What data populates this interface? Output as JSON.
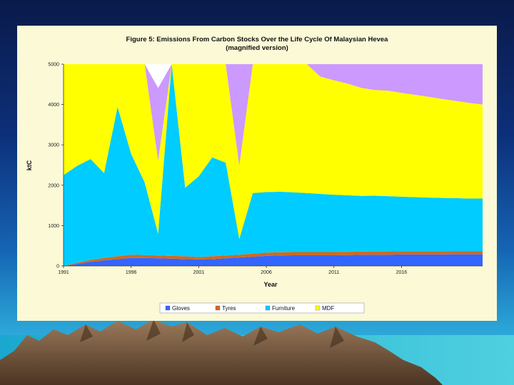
{
  "chart_data": {
    "type": "area",
    "stacked": true,
    "title": "Figure 5: Emissions From Carbon Stocks Over the Life Cycle Of Malaysian Hevea",
    "subtitle": "(magnified version)",
    "xlabel": "Year",
    "ylabel": "ktC",
    "ylim": [
      0,
      5000
    ],
    "xlim": [
      1991,
      2022
    ],
    "x_tick_values": [
      1991,
      1996,
      2001,
      2006,
      2011,
      2016
    ],
    "x_tick_labels": [
      "1991",
      "1996",
      "2001",
      "2006",
      "2011",
      "2016"
    ],
    "y_ticks": [
      0,
      1000,
      2000,
      3000,
      4000,
      5000
    ],
    "grid": false,
    "legend_position": "bottom",
    "x": [
      1991,
      1992,
      1993,
      1994,
      1995,
      1996,
      1997,
      1998,
      1999,
      2000,
      2001,
      2002,
      2003,
      2004,
      2005,
      2006,
      2007,
      2008,
      2009,
      2010,
      2011,
      2012,
      2013,
      2014,
      2015,
      2016,
      2017,
      2018,
      2019,
      2020,
      2021,
      2022
    ],
    "series": [
      {
        "name": "Gloves",
        "color": "#3366ff",
        "values": [
          0,
          50,
          100,
          140,
          170,
          200,
          200,
          190,
          180,
          170,
          160,
          170,
          190,
          210,
          230,
          250,
          260,
          265,
          265,
          265,
          265,
          270,
          275,
          280,
          280,
          285,
          285,
          285,
          285,
          290,
          290,
          290
        ]
      },
      {
        "name": "Tyres",
        "color": "#d2691e",
        "values": [
          0,
          30,
          50,
          60,
          70,
          80,
          70,
          70,
          70,
          70,
          60,
          70,
          70,
          70,
          75,
          80,
          80,
          80,
          80,
          80,
          80,
          80,
          80,
          80,
          80,
          80,
          80,
          80,
          80,
          80,
          80,
          80
        ]
      },
      {
        "name": "Furniture",
        "color": "#00ccff",
        "values": [
          2250,
          2400,
          2500,
          2100,
          3700,
          2500,
          1800,
          540,
          4900,
          1700,
          2000,
          2450,
          2300,
          390,
          1500,
          1500,
          1500,
          1480,
          1460,
          1440,
          1420,
          1400,
          1380,
          1380,
          1370,
          1350,
          1340,
          1330,
          1320,
          1310,
          1300,
          1300
        ]
      },
      {
        "name": "MDF",
        "color": "#ffff00",
        "values": [
          2750,
          2520,
          2350,
          2700,
          1060,
          2220,
          2930,
          1810,
          0,
          3060,
          2780,
          2310,
          2440,
          1810,
          3195,
          3170,
          3160,
          3175,
          3195,
          2905,
          2835,
          2770,
          2680,
          2620,
          2615,
          2575,
          2535,
          2495,
          2455,
          2410,
          2370,
          2330
        ]
      },
      {
        "name": "",
        "color": "#cc99ff",
        "values": [
          0,
          0,
          0,
          0,
          0,
          0,
          0,
          1800,
          0,
          0,
          0,
          0,
          0,
          2520,
          0,
          0,
          0,
          0,
          0,
          310,
          400,
          480,
          585,
          640,
          655,
          710,
          760,
          810,
          860,
          910,
          960,
          1000
        ]
      }
    ]
  }
}
